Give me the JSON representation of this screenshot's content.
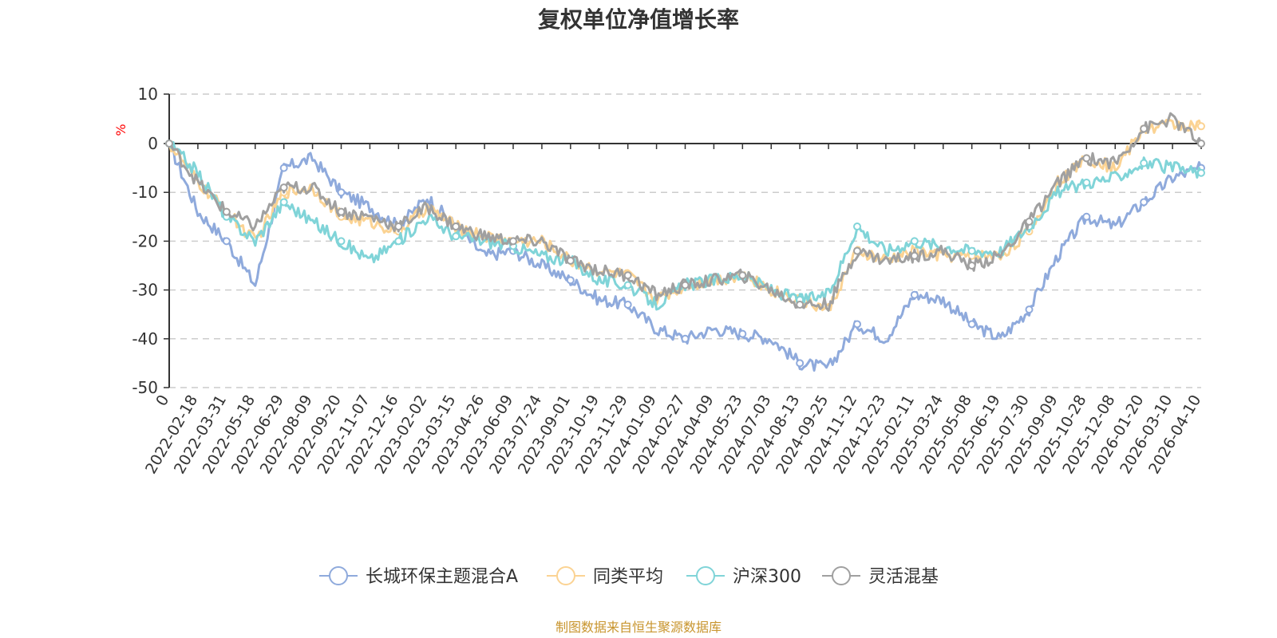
{
  "chart_data": {
    "type": "line",
    "title": "复权单位净值增长率",
    "ylabel": "%",
    "xlabel": "",
    "ylim": [
      -50,
      10
    ],
    "y_ticks": [
      "10",
      "0",
      "-10",
      "-20",
      "-30",
      "-40",
      "-50"
    ],
    "y_tick_values": [
      10,
      0,
      -10,
      -20,
      -30,
      -40,
      -50
    ],
    "categories": [
      "0",
      "2022-02-18",
      "2022-03-31",
      "2022-05-18",
      "2022-06-29",
      "2022-08-09",
      "2022-09-20",
      "2022-11-07",
      "2022-12-16",
      "2023-02-02",
      "2023-03-15",
      "2023-04-26",
      "2023-06-09",
      "2023-07-24",
      "2023-09-01",
      "2023-10-19",
      "2023-11-29",
      "2024-01-09",
      "2024-02-27",
      "2024-04-09",
      "2024-05-23",
      "2024-07-03",
      "2024-08-13",
      "2024-09-25",
      "2024-11-12",
      "2024-12-23",
      "2025-02-11",
      "2025-03-24",
      "2025-05-08",
      "2025-06-19",
      "2025-07-30",
      "2025-09-09",
      "2025-10-28",
      "2025-12-08",
      "2026-01-20",
      "2026-03-10",
      "2026-04-10"
    ],
    "grid": true,
    "legend_position": "bottom-center",
    "series": [
      {
        "name": "长城环保主题混合A",
        "color": "#8faadc",
        "values": [
          0,
          -14,
          -20,
          -29,
          -5,
          -3,
          -10,
          -13,
          -17,
          -11,
          -17,
          -23,
          -22,
          -25,
          -28,
          -32,
          -33,
          -38,
          -40,
          -38,
          -39,
          -40,
          -45,
          -46,
          -37,
          -40,
          -31,
          -32,
          -37,
          -40,
          -34,
          -23,
          -15,
          -17,
          -12,
          -7,
          -5
        ]
      },
      {
        "name": "同类平均",
        "color": "#fbd393",
        "values": [
          0,
          -8,
          -14,
          -20,
          -10,
          -9,
          -15,
          -16,
          -18,
          -13,
          -17,
          -19,
          -20,
          -20,
          -24,
          -26,
          -27,
          -32,
          -29,
          -28,
          -27,
          -30,
          -32,
          -34,
          -22,
          -24,
          -22,
          -23,
          -23,
          -23,
          -18,
          -8,
          -3,
          -5,
          3,
          4,
          3.5
        ]
      },
      {
        "name": "沪深300",
        "color": "#80d4d8",
        "values": [
          0,
          -6,
          -15,
          -20,
          -12,
          -16,
          -20,
          -24,
          -20,
          -15,
          -19,
          -20,
          -21,
          -23,
          -24,
          -28,
          -29,
          -33,
          -29,
          -28,
          -27,
          -30,
          -32,
          -31,
          -17,
          -22,
          -20,
          -21,
          -22,
          -22,
          -17,
          -10,
          -8,
          -7,
          -4,
          -5,
          -6
        ]
      },
      {
        "name": "灵活混基",
        "color": "#a0a0a0",
        "values": [
          0,
          -8,
          -14,
          -17,
          -9,
          -9,
          -14,
          -15,
          -17,
          -13,
          -17,
          -19,
          -20,
          -20,
          -24,
          -26,
          -27,
          -31,
          -29,
          -28,
          -27,
          -30,
          -33,
          -33,
          -22,
          -24,
          -23,
          -22,
          -25,
          -23,
          -16,
          -8,
          -3,
          -4,
          3,
          5,
          0
        ]
      }
    ]
  },
  "source_note": "制图数据来自恒生聚源数据库"
}
